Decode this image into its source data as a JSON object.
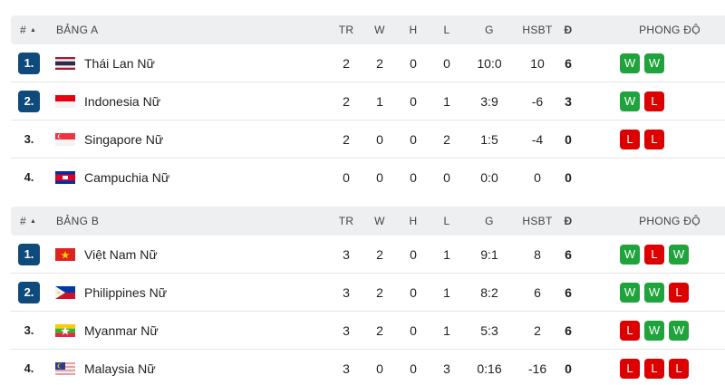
{
  "columns": {
    "rank": "#",
    "tr": "TR",
    "w": "W",
    "h": "H",
    "l": "L",
    "g": "G",
    "hsbt": "HSBT",
    "d": "Đ",
    "form": "PHONG ĐỘ"
  },
  "sort_icon": "triangle-up-icon",
  "form_colors": {
    "W": "#1fa33b",
    "L": "#dc0000"
  },
  "rank_badge_color": "#0e4a7c",
  "groups": [
    {
      "title": "BẢNG A",
      "rows": [
        {
          "rank": "1.",
          "highlight": true,
          "flag": "flag-thailand",
          "team": "Thái Lan Nữ",
          "tr": "2",
          "w": "2",
          "h": "0",
          "l": "0",
          "g": "10:0",
          "hsbt": "10",
          "d": "6",
          "form": [
            "W",
            "W"
          ]
        },
        {
          "rank": "2.",
          "highlight": true,
          "flag": "flag-indonesia",
          "team": "Indonesia Nữ",
          "tr": "2",
          "w": "1",
          "h": "0",
          "l": "1",
          "g": "3:9",
          "hsbt": "-6",
          "d": "3",
          "form": [
            "W",
            "L"
          ]
        },
        {
          "rank": "3.",
          "highlight": false,
          "flag": "flag-singapore",
          "team": "Singapore Nữ",
          "tr": "2",
          "w": "0",
          "h": "0",
          "l": "2",
          "g": "1:5",
          "hsbt": "-4",
          "d": "0",
          "form": [
            "L",
            "L"
          ]
        },
        {
          "rank": "4.",
          "highlight": false,
          "flag": "flag-cambodia",
          "team": "Campuchia Nữ",
          "tr": "0",
          "w": "0",
          "h": "0",
          "l": "0",
          "g": "0:0",
          "hsbt": "0",
          "d": "0",
          "form": []
        }
      ]
    },
    {
      "title": "BẢNG B",
      "rows": [
        {
          "rank": "1.",
          "highlight": true,
          "flag": "flag-vietnam",
          "team": "Việt Nam Nữ",
          "tr": "3",
          "w": "2",
          "h": "0",
          "l": "1",
          "g": "9:1",
          "hsbt": "8",
          "d": "6",
          "form": [
            "W",
            "L",
            "W"
          ]
        },
        {
          "rank": "2.",
          "highlight": true,
          "flag": "flag-philippines",
          "team": "Philippines Nữ",
          "tr": "3",
          "w": "2",
          "h": "0",
          "l": "1",
          "g": "8:2",
          "hsbt": "6",
          "d": "6",
          "form": [
            "W",
            "W",
            "L"
          ]
        },
        {
          "rank": "3.",
          "highlight": false,
          "flag": "flag-myanmar",
          "team": "Myanmar Nữ",
          "tr": "3",
          "w": "2",
          "h": "0",
          "l": "1",
          "g": "5:3",
          "hsbt": "2",
          "d": "6",
          "form": [
            "L",
            "W",
            "W"
          ]
        },
        {
          "rank": "4.",
          "highlight": false,
          "flag": "flag-malaysia",
          "team": "Malaysia Nữ",
          "tr": "3",
          "w": "0",
          "h": "0",
          "l": "3",
          "g": "0:16",
          "hsbt": "-16",
          "d": "0",
          "form": [
            "L",
            "L",
            "L"
          ]
        }
      ]
    }
  ]
}
